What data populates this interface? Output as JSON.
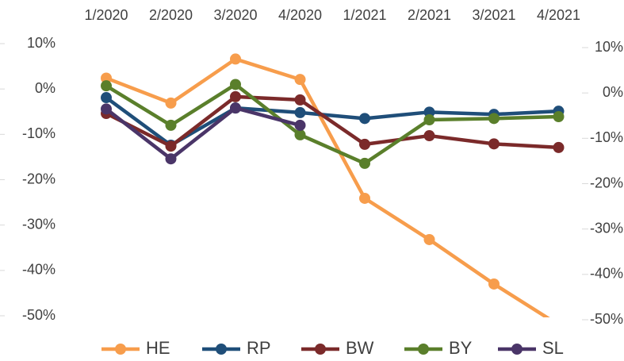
{
  "chart_data": {
    "type": "line",
    "categories": [
      "1/2020",
      "2/2020",
      "3/2020",
      "4/2020",
      "1/2021",
      "2/2021",
      "3/2021",
      "4/2021"
    ],
    "series": [
      {
        "name": "HE",
        "color": "#f79d4c",
        "values": [
          2.4,
          -3.1,
          6.6,
          2.1,
          -24.1,
          -33.2,
          -43,
          -52
        ]
      },
      {
        "name": "RP",
        "color": "#1f4e79",
        "values": [
          -1.9,
          -12.4,
          -4.2,
          -5.2,
          -6.5,
          -5.1,
          -5.6,
          -4.9
        ]
      },
      {
        "name": "BW",
        "color": "#7b2a2a",
        "values": [
          -5.4,
          -12.6,
          -1.7,
          -2.4,
          -12.2,
          -10.3,
          -12.1,
          -12.9
        ]
      },
      {
        "name": "BY",
        "color": "#5a7f2b",
        "values": [
          0.7,
          -8,
          1,
          -10.1,
          -16.4,
          -6.8,
          -6.5,
          -6.1
        ]
      },
      {
        "name": "SL",
        "color": "#4a3568",
        "values": [
          -4.4,
          -15.4,
          -4.2,
          -8,
          null,
          null,
          null,
          null
        ]
      }
    ],
    "ylim": [
      -50,
      10
    ],
    "yticks": [
      {
        "value": 10,
        "label": "10%"
      },
      {
        "value": 0,
        "label": "0%"
      },
      {
        "value": -10,
        "label": "-10%"
      },
      {
        "value": -20,
        "label": "-20%"
      },
      {
        "value": -30,
        "label": "-30%"
      },
      {
        "value": -40,
        "label": "-40%"
      },
      {
        "value": -50,
        "label": "-50%"
      }
    ],
    "y2lim": [
      -50,
      10
    ],
    "y2ticks": [
      {
        "value": 10,
        "label": "10%"
      },
      {
        "value": 0,
        "label": "0%"
      },
      {
        "value": -10,
        "label": "-10%"
      },
      {
        "value": -20,
        "label": "-20%"
      },
      {
        "value": -30,
        "label": "-30%"
      },
      {
        "value": -40,
        "label": "-40%"
      },
      {
        "value": -50,
        "label": "-50%"
      }
    ],
    "grid": false
  }
}
